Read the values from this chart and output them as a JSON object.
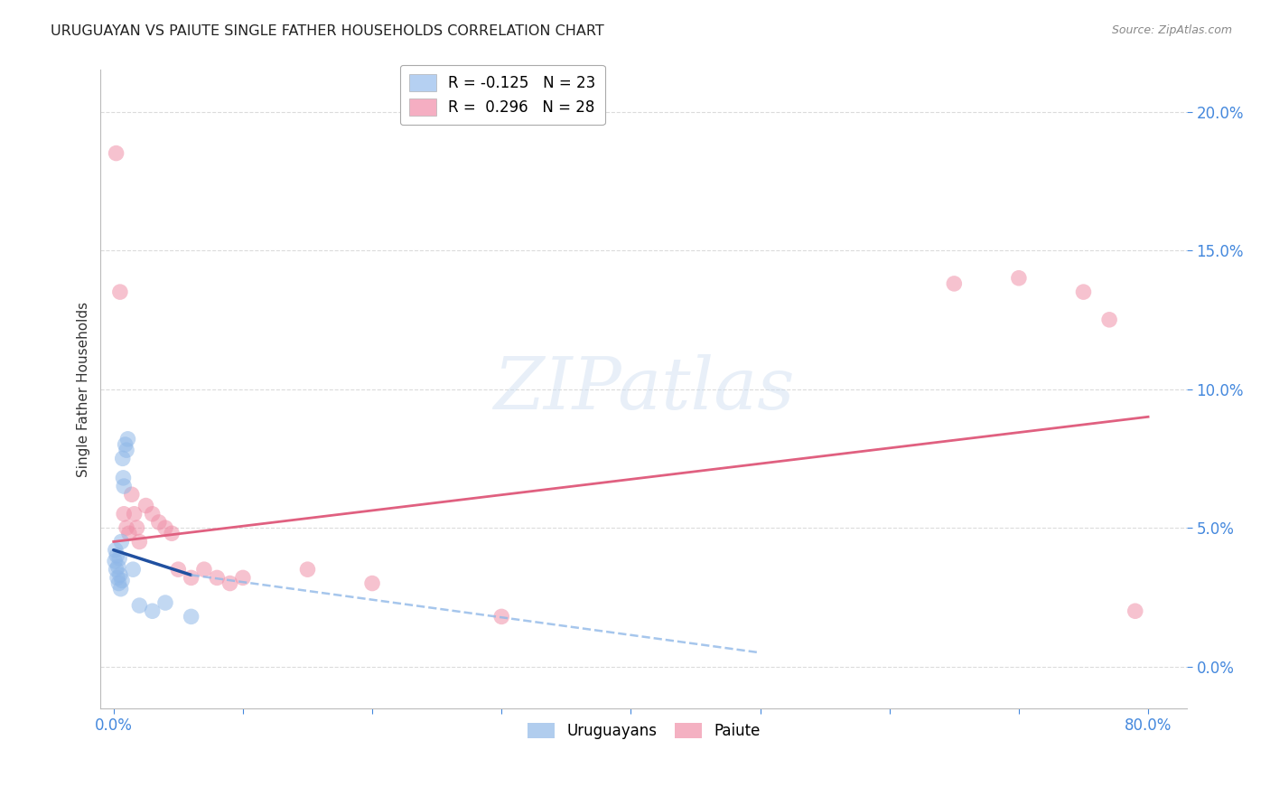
{
  "title": "URUGUAYAN VS PAIUTE SINGLE FATHER HOUSEHOLDS CORRELATION CHART",
  "source": "Source: ZipAtlas.com",
  "ylabel": "Single Father Households",
  "ytick_labels": [
    "0.0%",
    "5.0%",
    "10.0%",
    "15.0%",
    "20.0%"
  ],
  "ytick_values": [
    0.0,
    5.0,
    10.0,
    15.0,
    20.0
  ],
  "xlim": [
    -1.0,
    83.0
  ],
  "ylim": [
    -1.5,
    21.5
  ],
  "legend_entries": [
    {
      "label": "R = -0.125   N = 23",
      "color": "#a8c8f0"
    },
    {
      "label": "R =  0.296   N = 28",
      "color": "#f4a0b8"
    }
  ],
  "uruguayan_points": [
    [
      0.1,
      3.8
    ],
    [
      0.15,
      4.2
    ],
    [
      0.2,
      3.5
    ],
    [
      0.25,
      4.0
    ],
    [
      0.3,
      3.2
    ],
    [
      0.35,
      3.6
    ],
    [
      0.4,
      3.0
    ],
    [
      0.45,
      3.9
    ],
    [
      0.5,
      3.3
    ],
    [
      0.55,
      2.8
    ],
    [
      0.6,
      4.5
    ],
    [
      0.65,
      3.1
    ],
    [
      0.7,
      7.5
    ],
    [
      0.75,
      6.8
    ],
    [
      0.8,
      6.5
    ],
    [
      0.9,
      8.0
    ],
    [
      1.0,
      7.8
    ],
    [
      1.1,
      8.2
    ],
    [
      1.5,
      3.5
    ],
    [
      2.0,
      2.2
    ],
    [
      3.0,
      2.0
    ],
    [
      4.0,
      2.3
    ],
    [
      6.0,
      1.8
    ]
  ],
  "paiute_points": [
    [
      0.2,
      18.5
    ],
    [
      0.5,
      13.5
    ],
    [
      0.8,
      5.5
    ],
    [
      1.0,
      5.0
    ],
    [
      1.2,
      4.8
    ],
    [
      1.4,
      6.2
    ],
    [
      1.6,
      5.5
    ],
    [
      1.8,
      5.0
    ],
    [
      2.0,
      4.5
    ],
    [
      2.5,
      5.8
    ],
    [
      3.0,
      5.5
    ],
    [
      3.5,
      5.2
    ],
    [
      4.0,
      5.0
    ],
    [
      4.5,
      4.8
    ],
    [
      5.0,
      3.5
    ],
    [
      6.0,
      3.2
    ],
    [
      7.0,
      3.5
    ],
    [
      8.0,
      3.2
    ],
    [
      9.0,
      3.0
    ],
    [
      10.0,
      3.2
    ],
    [
      15.0,
      3.5
    ],
    [
      20.0,
      3.0
    ],
    [
      30.0,
      1.8
    ],
    [
      65.0,
      13.8
    ],
    [
      70.0,
      14.0
    ],
    [
      75.0,
      13.5
    ],
    [
      77.0,
      12.5
    ],
    [
      79.0,
      2.0
    ]
  ],
  "blue_line": {
    "x0": 0.0,
    "y0": 4.2,
    "x1": 6.0,
    "y1": 3.3
  },
  "blue_dash_line": {
    "x0": 6.0,
    "y0": 3.3,
    "x1": 50.0,
    "y1": 0.5
  },
  "pink_line": {
    "x0": 0.0,
    "y0": 4.5,
    "x1": 80.0,
    "y1": 9.0
  },
  "bg_color": "#ffffff",
  "grid_color": "#cccccc",
  "scatter_size": 160,
  "uruguayan_color": "#90b8e8",
  "paiute_color": "#f090a8",
  "blue_line_color": "#2050a0",
  "blue_dash_color": "#90b8e8",
  "pink_line_color": "#e06080",
  "title_color": "#222222",
  "axis_tick_color": "#4488dd",
  "source_color": "#888888"
}
